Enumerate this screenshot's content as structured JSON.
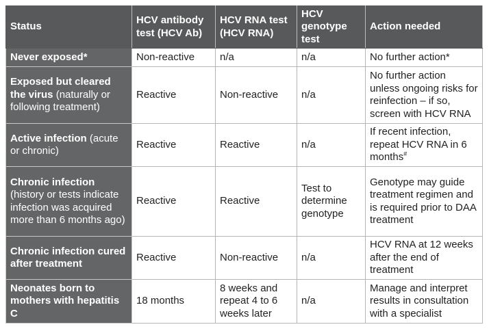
{
  "table": {
    "headers": [
      "Status",
      "HCV antibody test (HCV Ab)",
      "HCV RNA test (HCV RNA)",
      "HCV genotype test",
      "Action needed"
    ],
    "rows": [
      {
        "title": "Never exposed*",
        "ab": "Non-reactive",
        "rna": "n/a",
        "genotype": "n/a",
        "action": "No further action*"
      },
      {
        "title": "Exposed but cleared the virus",
        "detail": "(naturally or following treatment)",
        "ab": "Reactive",
        "rna": "Non-reactive",
        "genotype": "n/a",
        "action": "No further action unless ongoing risks for reinfection – if so, screen with HCV RNA"
      },
      {
        "title": "Active infection",
        "detail": "(acute or chronic)",
        "ab": "Reactive",
        "rna": "Reactive",
        "genotype": "n/a",
        "action": "If recent infection, repeat HCV RNA in 6 months",
        "action_note": "#"
      },
      {
        "title": "Chronic infection",
        "detail": "(history or tests indicate infection was acquired more than 6 months ago)",
        "ab": "Reactive",
        "rna": "Reactive",
        "genotype": "Test to determine genotype",
        "action": "Genotype may guide treatment regimen and is required prior to DAA treatment"
      },
      {
        "title": "Chronic infection cured after treatment",
        "ab": "Reactive",
        "rna": "Non-reactive",
        "genotype": "n/a",
        "action": "HCV RNA at 12 weeks after the end of treatment"
      },
      {
        "title": "Neonates born to mothers with hepatitis C",
        "ab": "18 months",
        "rna": "8 weeks and repeat 4 to 6 weeks later",
        "genotype": "n/a",
        "action": "Manage and interpret results in consultation with a specialist"
      }
    ]
  }
}
